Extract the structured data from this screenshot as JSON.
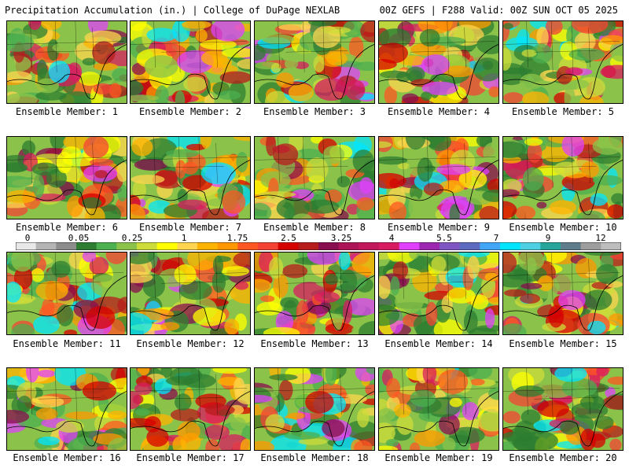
{
  "header": {
    "left_title": "Precipitation Accumulation (in.) | College of DuPage NEXLAB",
    "right_title": "00Z GEFS | F288 Valid: 00Z SUN OCT 05 2025"
  },
  "panels": [
    {
      "caption": "Ensemble Member: 1"
    },
    {
      "caption": "Ensemble Member: 2"
    },
    {
      "caption": "Ensemble Member: 3"
    },
    {
      "caption": "Ensemble Member: 4"
    },
    {
      "caption": "Ensemble Member: 5"
    },
    {
      "caption": "Ensemble Member: 6"
    },
    {
      "caption": "Ensemble Member: 7"
    },
    {
      "caption": "Ensemble Member: 8"
    },
    {
      "caption": "Ensemble Member: 9"
    },
    {
      "caption": "Ensemble Member: 10"
    },
    {
      "caption": "Ensemble Member: 11"
    },
    {
      "caption": "Ensemble Member: 12"
    },
    {
      "caption": "Ensemble Member: 13"
    },
    {
      "caption": "Ensemble Member: 14"
    },
    {
      "caption": "Ensemble Member: 15"
    },
    {
      "caption": "Ensemble Member: 16"
    },
    {
      "caption": "Ensemble Member: 17"
    },
    {
      "caption": "Ensemble Member: 18"
    },
    {
      "caption": "Ensemble Member: 19"
    },
    {
      "caption": "Ensemble Member: 20"
    }
  ],
  "colorbar": {
    "labels": [
      "0",
      "0.05",
      "0.25",
      "1",
      "1.75",
      "2.5",
      "3.25",
      "4",
      "5.5",
      "7",
      "9",
      "12"
    ],
    "colors": [
      "#e8e8e8",
      "#b4b4b4",
      "#8c8c8c",
      "#2e7d32",
      "#4caf50",
      "#8bc34a",
      "#cddc39",
      "#ffff00",
      "#ffd54f",
      "#ffb300",
      "#ff9800",
      "#ff5722",
      "#f44336",
      "#d50000",
      "#b71c1c",
      "#880e4f",
      "#ad1457",
      "#c2185b",
      "#d81b60",
      "#e040fb",
      "#9c27b0",
      "#7e57c2",
      "#5c6bc0",
      "#42a5f5",
      "#00e5ff",
      "#4dd0e1",
      "#26a69a",
      "#607d8b",
      "#9e9e9e",
      "#bdbdbd"
    ]
  }
}
